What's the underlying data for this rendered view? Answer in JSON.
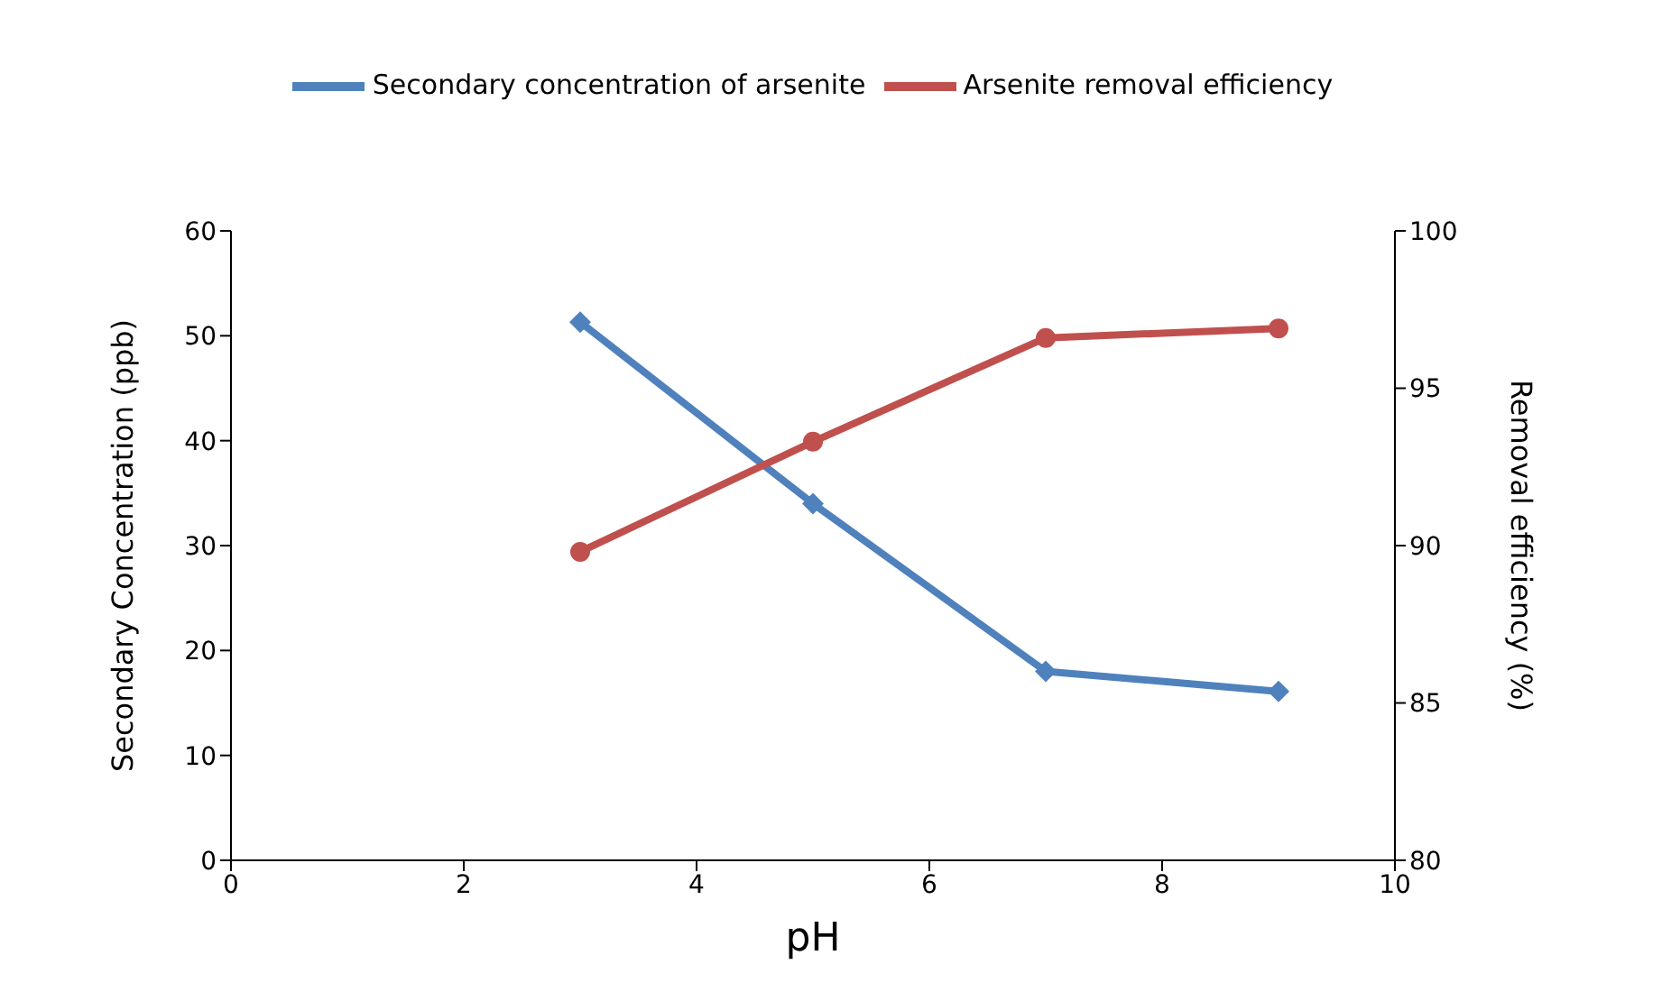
{
  "chart_data": {
    "type": "line",
    "xlabel": "pH",
    "ylabel": "Secondary Concentration (ppb)",
    "y2label": "Removal efficiency (%)",
    "x": [
      3,
      5,
      7,
      9
    ],
    "series": [
      {
        "name": "Secondary concentration of arsenite",
        "color": "#4f81bd",
        "values": [
          51.3,
          34,
          18,
          16.1
        ],
        "marker": "diamond"
      },
      {
        "name": "Arsenite removal efficiency",
        "color": "#c0504d",
        "values": [
          89.8,
          93.3,
          96.6,
          96.9
        ],
        "marker": "circle",
        "axis": "y2"
      }
    ],
    "xlim": [
      0,
      10
    ],
    "xticks": [
      0,
      2,
      4,
      6,
      8,
      10
    ],
    "ylim": [
      0,
      60
    ],
    "yticks": [
      0,
      10,
      20,
      30,
      40,
      50,
      60
    ],
    "y2lim": [
      80,
      100
    ],
    "y2ticks": [
      80,
      85,
      90,
      95,
      100
    ],
    "grid": false,
    "legend": "top",
    "line_style": "solid"
  }
}
